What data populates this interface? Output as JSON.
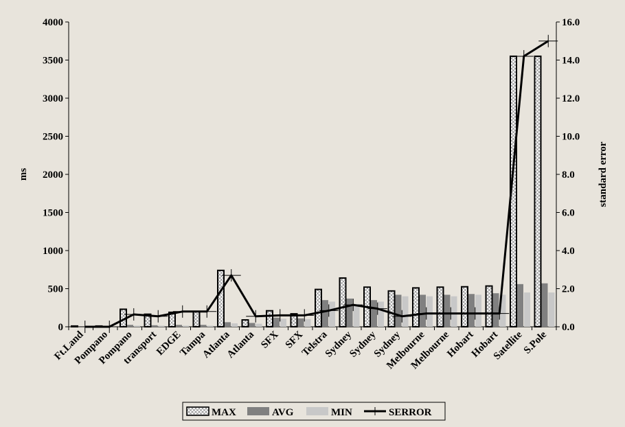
{
  "chart_data": {
    "type": "bar",
    "categories": [
      "Ft.Land",
      "Pompano",
      "Pompano",
      "transport",
      "EDGE",
      "Tampa",
      "Atlanta",
      "Atlanta",
      "SFX",
      "SFX",
      "Telstra",
      "Sydney",
      "Sydney",
      "Sydney",
      "Melbourne",
      "Melbourne",
      "Hobart",
      "Hobart",
      "Satellite",
      "S.Pole"
    ],
    "series": [
      {
        "name": "MAX",
        "axis": "left",
        "kind": "bar",
        "values": [
          10,
          10,
          230,
          165,
          190,
          200,
          740,
          90,
          210,
          170,
          490,
          640,
          520,
          470,
          510,
          520,
          525,
          535,
          3550,
          3550
        ]
      },
      {
        "name": "AVG",
        "axis": "left",
        "kind": "bar",
        "values": [
          5,
          5,
          25,
          20,
          25,
          25,
          60,
          50,
          120,
          110,
          350,
          370,
          350,
          420,
          420,
          420,
          430,
          440,
          560,
          570
        ]
      },
      {
        "name": "MIN",
        "axis": "left",
        "kind": "bar",
        "values": [
          3,
          3,
          15,
          15,
          15,
          15,
          45,
          40,
          105,
          100,
          330,
          300,
          330,
          400,
          400,
          400,
          420,
          420,
          450,
          450
        ]
      },
      {
        "name": "SERROR",
        "axis": "right",
        "kind": "line",
        "values": [
          0.0,
          0.0,
          0.65,
          0.55,
          0.8,
          0.8,
          2.7,
          0.55,
          0.6,
          0.6,
          0.85,
          1.15,
          0.95,
          0.55,
          0.7,
          0.7,
          0.7,
          0.7,
          14.2,
          15.0
        ]
      }
    ],
    "ylabel": "ms",
    "y2label": "standard error",
    "ylim": [
      0,
      4000
    ],
    "y2lim": [
      0,
      16
    ],
    "yticks": [
      "0",
      "500",
      "1000",
      "1500",
      "2000",
      "2500",
      "3000",
      "3500",
      "4000"
    ],
    "y2ticks": [
      "0.0",
      "2.0",
      "4.0",
      "6.0",
      "8.0",
      "10.0",
      "12.0",
      "14.0",
      "16.0"
    ],
    "legend_position": "bottom-center",
    "colors": {
      "max_fill": "#ffffff",
      "max_hatch": "#888888",
      "avg": "#808080",
      "min": "#c8c8c8",
      "serror": "#000000",
      "background": "#e8e4dc"
    }
  }
}
